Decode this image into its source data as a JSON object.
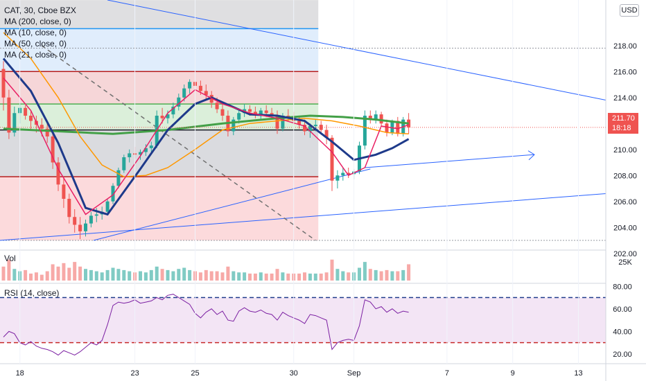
{
  "legend": {
    "symbol": "CAT, 30, Cboe BZX",
    "ma200": "MA (200, close, 0)",
    "ma10": "MA (10, close, 0)",
    "ma50": "MA (50, close, 0)",
    "ma21": "MA (21, close, 0)"
  },
  "currency_button": "USD",
  "last_price": "211.70",
  "countdown": "18:18",
  "volume_label": "Vol",
  "volume_axis_label": "25K",
  "rsi_label": "RSI (14, close)",
  "colors": {
    "up": "#26a69a",
    "down": "#ef5350",
    "ma10": "#e91e63",
    "ma21": "#1e3a8a",
    "ma50": "#ff9800",
    "ma200": "#43a047",
    "rsi": "#7b1fa2",
    "trendline": "#2962ff"
  },
  "chart_data": [
    {
      "type": "candlestick",
      "title": "CAT, 30, Cboe BZX",
      "y_ticks": [
        202,
        204,
        206,
        208,
        210,
        212,
        214,
        216,
        218
      ],
      "ylim": [
        202,
        221
      ],
      "x_tick_labels": [
        "18",
        "23",
        "25",
        "30",
        "Sep",
        "7",
        "9",
        "13"
      ],
      "x_tick_index": [
        3,
        24,
        35,
        53,
        64,
        81,
        93,
        105
      ],
      "last_price": 211.7,
      "ohlc": [
        [
          216.2,
          216.8,
          213.0,
          214.0
        ],
        [
          214.0,
          214.6,
          210.8,
          211.3
        ],
        [
          211.3,
          213.3,
          211.0,
          212.8
        ],
        [
          212.8,
          213.6,
          212.0,
          213.2
        ],
        [
          213.2,
          213.4,
          212.3,
          212.6
        ],
        [
          212.6,
          213.0,
          211.5,
          212.2
        ],
        [
          212.2,
          212.6,
          211.3,
          211.9
        ],
        [
          211.9,
          212.4,
          211.0,
          211.6
        ],
        [
          211.6,
          212.0,
          210.5,
          211.0
        ],
        [
          211.0,
          211.2,
          208.5,
          209.0
        ],
        [
          209.0,
          209.4,
          206.8,
          207.3
        ],
        [
          207.3,
          207.8,
          205.5,
          206.2
        ],
        [
          206.2,
          206.6,
          204.3,
          204.8
        ],
        [
          204.8,
          205.4,
          203.6,
          204.2
        ],
        [
          204.2,
          204.8,
          203.1,
          203.7
        ],
        [
          203.7,
          204.6,
          203.3,
          204.3
        ],
        [
          204.3,
          205.2,
          204.0,
          204.9
        ],
        [
          204.9,
          205.5,
          204.4,
          205.0
        ],
        [
          205.0,
          205.6,
          204.6,
          205.2
        ],
        [
          205.2,
          206.2,
          205.0,
          206.0
        ],
        [
          206.0,
          207.4,
          205.8,
          207.2
        ],
        [
          207.2,
          208.6,
          207.0,
          208.4
        ],
        [
          208.4,
          209.6,
          208.2,
          209.4
        ],
        [
          209.4,
          210.0,
          209.0,
          209.7
        ],
        [
          209.7,
          210.2,
          209.3,
          209.6
        ],
        [
          209.6,
          210.0,
          209.2,
          209.8
        ],
        [
          209.8,
          210.4,
          209.5,
          210.1
        ],
        [
          210.1,
          210.6,
          209.8,
          210.3
        ],
        [
          210.3,
          213.0,
          210.1,
          212.6
        ],
        [
          212.6,
          213.2,
          212.0,
          212.4
        ],
        [
          212.4,
          213.0,
          212.0,
          212.7
        ],
        [
          212.7,
          213.6,
          212.4,
          213.3
        ],
        [
          213.3,
          214.3,
          213.0,
          214.0
        ],
        [
          214.0,
          215.0,
          213.7,
          214.7
        ],
        [
          214.7,
          215.4,
          214.3,
          215.2
        ],
        [
          215.2,
          215.6,
          214.6,
          214.9
        ],
        [
          214.9,
          215.3,
          214.2,
          214.5
        ],
        [
          214.5,
          215.0,
          213.9,
          214.2
        ],
        [
          214.2,
          214.5,
          213.2,
          213.6
        ],
        [
          213.6,
          214.0,
          212.8,
          213.1
        ],
        [
          213.1,
          213.5,
          212.2,
          212.6
        ],
        [
          212.6,
          213.0,
          211.0,
          211.4
        ],
        [
          211.4,
          212.5,
          211.1,
          212.3
        ],
        [
          212.3,
          213.1,
          212.0,
          212.8
        ],
        [
          212.8,
          213.5,
          212.5,
          213.1
        ],
        [
          213.1,
          213.4,
          212.6,
          212.9
        ],
        [
          212.9,
          213.3,
          212.4,
          212.7
        ],
        [
          212.7,
          213.2,
          212.3,
          213.0
        ],
        [
          213.0,
          213.4,
          212.5,
          212.8
        ],
        [
          212.8,
          213.2,
          212.3,
          212.6
        ],
        [
          212.6,
          213.0,
          211.2,
          211.6
        ],
        [
          211.6,
          212.8,
          211.4,
          212.6
        ],
        [
          212.6,
          213.1,
          212.2,
          212.5
        ],
        [
          212.5,
          212.9,
          211.9,
          212.2
        ],
        [
          212.2,
          212.6,
          211.6,
          211.9
        ],
        [
          211.9,
          212.3,
          211.1,
          211.4
        ],
        [
          211.4,
          212.0,
          210.9,
          211.8
        ],
        [
          211.8,
          212.3,
          211.4,
          211.9
        ],
        [
          211.9,
          212.2,
          211.2,
          211.5
        ],
        [
          211.5,
          211.9,
          210.4,
          210.9
        ],
        [
          210.9,
          211.1,
          206.8,
          207.6
        ],
        [
          207.6,
          208.4,
          207.0,
          208.0
        ],
        [
          208.0,
          208.6,
          207.6,
          208.2
        ],
        [
          208.2,
          208.6,
          207.8,
          208.1
        ],
        [
          208.1,
          208.5,
          207.7,
          208.3
        ],
        [
          208.3,
          210.6,
          208.1,
          210.3
        ],
        [
          210.3,
          213.0,
          210.0,
          212.6
        ],
        [
          212.6,
          213.0,
          212.0,
          212.3
        ],
        [
          212.3,
          213.0,
          212.0,
          212.7
        ],
        [
          212.7,
          212.9,
          211.8,
          212.0
        ],
        [
          212.0,
          212.3,
          211.0,
          211.3
        ],
        [
          211.3,
          212.3,
          211.1,
          212.2
        ],
        [
          212.2,
          212.5,
          211.0,
          211.2
        ],
        [
          211.2,
          212.5,
          211.0,
          212.3
        ],
        [
          212.3,
          212.8,
          211.2,
          211.7
        ]
      ],
      "overlays": {
        "ma10": [
          [
            0,
            215.5
          ],
          [
            5,
            213.0
          ],
          [
            10,
            208.5
          ],
          [
            15,
            205.0
          ],
          [
            20,
            206.5
          ],
          [
            25,
            209.5
          ],
          [
            30,
            212.8
          ],
          [
            35,
            214.6
          ],
          [
            40,
            213.5
          ],
          [
            45,
            212.8
          ],
          [
            50,
            212.4
          ],
          [
            55,
            211.8
          ],
          [
            60,
            209.8
          ],
          [
            63,
            208.0
          ],
          [
            66,
            208.6
          ],
          [
            69,
            211.8
          ],
          [
            72,
            211.6
          ],
          [
            74,
            211.9
          ]
        ],
        "ma21": [
          [
            0,
            217.0
          ],
          [
            5,
            214.5
          ],
          [
            10,
            210.5
          ],
          [
            15,
            205.5
          ],
          [
            19,
            205.0
          ],
          [
            25,
            208.5
          ],
          [
            30,
            211.5
          ],
          [
            35,
            213.5
          ],
          [
            38,
            214.0
          ],
          [
            45,
            212.7
          ],
          [
            50,
            212.6
          ],
          [
            55,
            212.2
          ],
          [
            60,
            210.6
          ],
          [
            64,
            209.2
          ],
          [
            68,
            209.6
          ],
          [
            71,
            210.1
          ],
          [
            74,
            210.8
          ]
        ],
        "ma50": [
          [
            0,
            219.0
          ],
          [
            5,
            217.0
          ],
          [
            10,
            214.0
          ],
          [
            14,
            211.0
          ],
          [
            18,
            208.8
          ],
          [
            22,
            207.9
          ],
          [
            26,
            208.0
          ],
          [
            30,
            208.6
          ],
          [
            35,
            210.0
          ],
          [
            40,
            211.5
          ],
          [
            45,
            212.0
          ],
          [
            50,
            212.2
          ],
          [
            55,
            212.4
          ],
          [
            60,
            212.2
          ],
          [
            65,
            211.8
          ],
          [
            70,
            211.3
          ],
          [
            74,
            211.2
          ]
        ],
        "ma200": [
          [
            0,
            211.6
          ],
          [
            10,
            211.4
          ],
          [
            20,
            211.2
          ],
          [
            30,
            211.5
          ],
          [
            40,
            212.0
          ],
          [
            50,
            212.4
          ],
          [
            56,
            212.6
          ],
          [
            62,
            212.5
          ],
          [
            68,
            212.3
          ],
          [
            74,
            212.0
          ]
        ]
      },
      "price_bands": [
        {
          "from": 219.3,
          "to": 221.5,
          "color": "#d9d9dc"
        },
        {
          "from": 216.0,
          "to": 219.3,
          "color": "#dbeafc"
        },
        {
          "from": 213.5,
          "to": 216.0,
          "color": "#f5cfd1"
        },
        {
          "from": 211.5,
          "to": 213.5,
          "color": "#d5ecd4"
        },
        {
          "from": 207.9,
          "to": 211.5,
          "color": "#d3d5d9"
        },
        {
          "from": 203.0,
          "to": 207.9,
          "color": "#fbd4d6"
        }
      ],
      "horizontal_levels": [
        219.3,
        216.0,
        213.5,
        211.5,
        207.9,
        203.0,
        217.8
      ]
    },
    {
      "type": "bar",
      "title": "Vol",
      "y_ticks": [
        "25K"
      ],
      "values": [
        12,
        18,
        10,
        8,
        9,
        6,
        7,
        5,
        8,
        14,
        12,
        15,
        11,
        16,
        12,
        10,
        9,
        8,
        7,
        9,
        11,
        10,
        9,
        8,
        7,
        8,
        7,
        9,
        12,
        10,
        9,
        8,
        10,
        11,
        9,
        8,
        7,
        9,
        8,
        8,
        7,
        12,
        8,
        7,
        7,
        6,
        6,
        7,
        6,
        6,
        10,
        7,
        6,
        6,
        6,
        7,
        6,
        6,
        6,
        7,
        18,
        10,
        8,
        7,
        7,
        11,
        16,
        10,
        9,
        8,
        9,
        8,
        8,
        9,
        14
      ]
    },
    {
      "type": "line",
      "title": "RSI (14, close)",
      "y_ticks": [
        20,
        40,
        60,
        80
      ],
      "ylim": [
        12,
        82
      ],
      "reference_levels": [
        70,
        30
      ],
      "values": [
        35,
        40,
        38,
        30,
        28,
        31,
        27,
        25,
        24,
        22,
        19,
        23,
        21,
        19,
        22,
        26,
        30,
        28,
        32,
        46,
        63,
        66,
        65,
        66,
        68,
        65,
        66,
        67,
        70,
        68,
        72,
        73,
        70,
        67,
        64,
        56,
        52,
        57,
        60,
        55,
        58,
        50,
        49,
        58,
        61,
        58,
        57,
        59,
        56,
        55,
        50,
        57,
        54,
        52,
        50,
        47,
        55,
        54,
        52,
        50,
        24,
        30,
        32,
        33,
        32,
        45,
        68,
        66,
        60,
        62,
        57,
        60,
        56,
        58,
        57
      ]
    }
  ]
}
